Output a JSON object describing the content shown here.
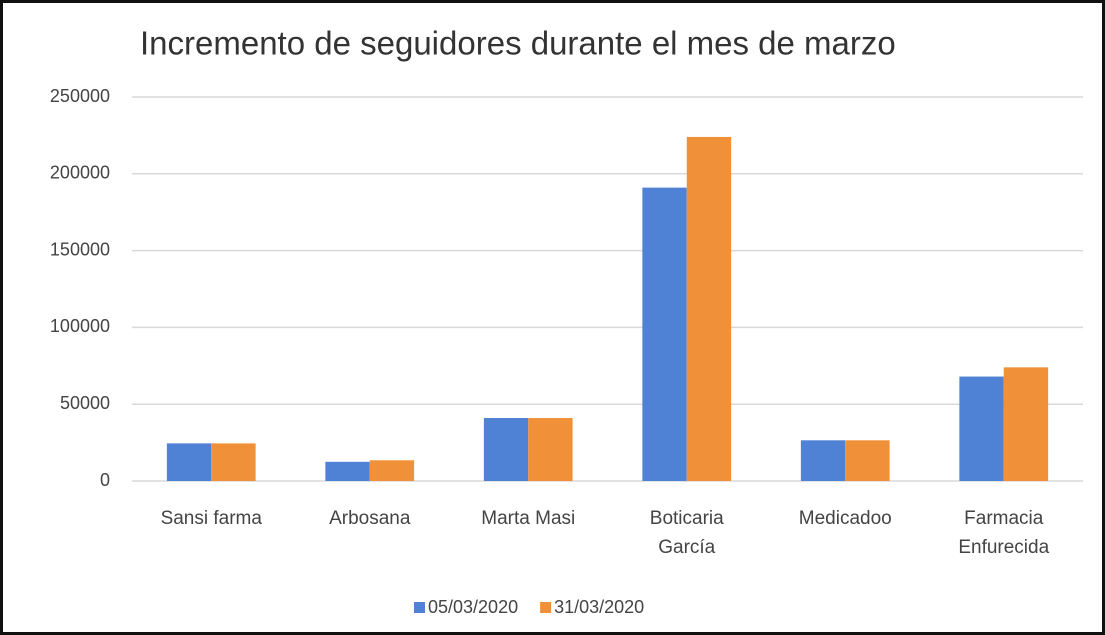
{
  "chart_data": {
    "type": "bar",
    "title": "Incremento de seguidores durante el mes de marzo",
    "categories": [
      "Sansi farma",
      "Arbosana",
      "Marta Masi",
      "Boticaria García",
      "Medicadoo",
      "Farmacia Enfurecida"
    ],
    "series": [
      {
        "name": "05/03/2020",
        "color": "#4f82d4",
        "values": [
          24500,
          12500,
          41000,
          191000,
          26500,
          68000
        ]
      },
      {
        "name": "31/03/2020",
        "color": "#f0913a",
        "values": [
          24500,
          13500,
          41000,
          224000,
          26500,
          74000
        ]
      }
    ],
    "ylim": [
      0,
      250000
    ],
    "yticks": [
      0,
      50000,
      100000,
      150000,
      200000,
      250000
    ],
    "grid": true,
    "legend": "bottom"
  }
}
